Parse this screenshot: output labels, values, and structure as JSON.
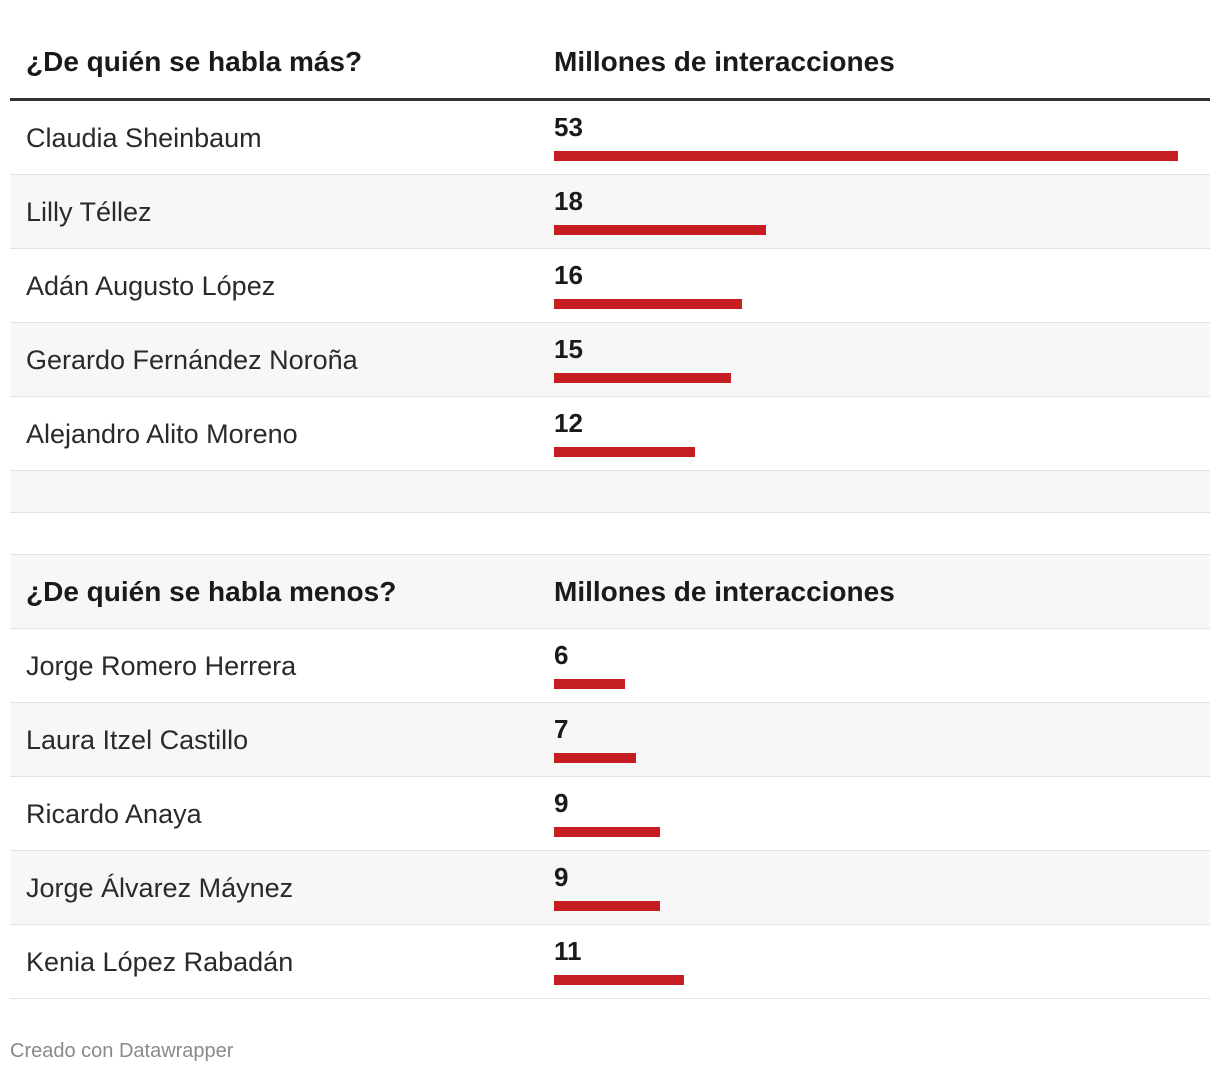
{
  "chart_data": [
    {
      "type": "bar",
      "title": "",
      "header": {
        "name_col": "¿De quién se habla más?",
        "value_col": "Millones de interacciones"
      },
      "categories": [
        "Claudia Sheinbaum",
        "Lilly Téllez",
        "Adán Augusto López",
        "Gerardo Fernández Noroña",
        "Alejandro Alito Moreno"
      ],
      "values": [
        53,
        18,
        16,
        15,
        12
      ],
      "bar_color": "#c61d23",
      "xlim": [
        0,
        53
      ]
    },
    {
      "type": "bar",
      "title": "",
      "header": {
        "name_col": "¿De quién se habla menos?",
        "value_col": "Millones de interacciones"
      },
      "categories": [
        "Jorge Romero Herrera",
        "Laura Itzel Castillo",
        "Ricardo Anaya",
        "Jorge Álvarez Máynez",
        "Kenia López Rabadán"
      ],
      "values": [
        6,
        7,
        9,
        9,
        11
      ],
      "bar_color": "#c61d23",
      "xlim": [
        0,
        53
      ]
    }
  ],
  "footer": "Creado con Datawrapper"
}
